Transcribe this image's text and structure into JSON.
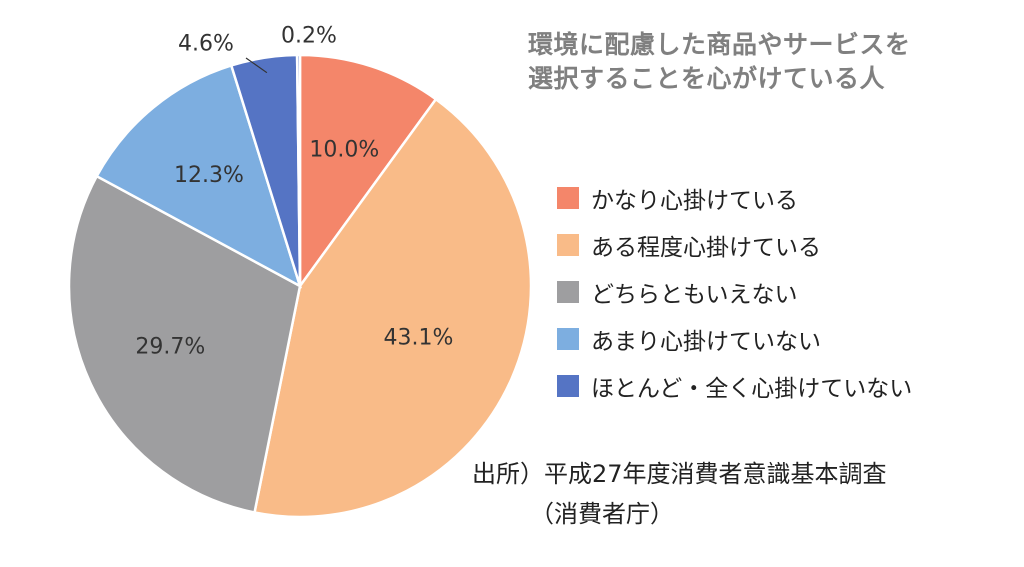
{
  "chart_data": {
    "type": "pie",
    "title_lines": [
      "環境に配慮した商品やサービスを",
      "選択することを心がけている人"
    ],
    "slices": [
      {
        "label": "かなり心掛けている",
        "value": 10.0,
        "display": "10.0%",
        "color": "#f4866a"
      },
      {
        "label": "ある程度心掛けている",
        "value": 43.1,
        "display": "43.1%",
        "color": "#f9bb88"
      },
      {
        "label": "どちらともいえない",
        "value": 29.7,
        "display": "29.7%",
        "color": "#9e9ea0"
      },
      {
        "label": "あまり心掛けていない",
        "value": 12.3,
        "display": "12.3%",
        "color": "#7daee0"
      },
      {
        "label": "ほとんど・全く心掛けていない",
        "value": 4.6,
        "display": "4.6%",
        "color": "#5574c4"
      },
      {
        "label": "",
        "value": 0.2,
        "display": "0.2%",
        "color": "#5574c4"
      }
    ],
    "legend_position": "right",
    "source_lines": [
      "出所）平成27年度消費者意識基本調査",
      "（消費者庁）"
    ]
  }
}
